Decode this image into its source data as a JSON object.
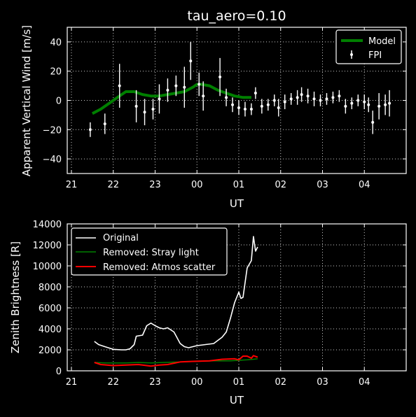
{
  "chart_data": [
    {
      "type": "line",
      "title": "tau_aero=0.10",
      "xlabel": "UT",
      "ylabel": "Apparent Vertical Wind [m/s]",
      "xlim": [
        20.9,
        29.0
      ],
      "ylim": [
        -50,
        50
      ],
      "xticks": [
        21,
        22,
        23,
        24,
        25,
        26,
        27,
        28
      ],
      "xtick_labels": [
        "21",
        "22",
        "23",
        "00",
        "01",
        "02",
        "03",
        "04"
      ],
      "yticks": [
        -40,
        -20,
        0,
        20,
        40
      ],
      "ytick_labels": [
        "−40",
        "−20",
        "0",
        "20",
        "40"
      ],
      "grid": true,
      "legend_position": "top-right",
      "legend": [
        "Model",
        "FPI"
      ],
      "colors": {
        "model": "#007f00",
        "fpi": "#ffffff",
        "background": "#000000",
        "grid": "#cccccc"
      },
      "series": [
        {
          "name": "Model",
          "style": "line",
          "x": [
            21.5,
            21.7,
            21.9,
            22.1,
            22.2,
            22.3,
            22.5,
            22.7,
            22.9,
            23.1,
            23.3,
            23.5,
            23.7,
            23.9,
            24.0,
            24.1,
            24.3,
            24.5,
            24.7,
            24.9,
            25.1,
            25.3
          ],
          "y": [
            -9,
            -6,
            -2,
            2,
            4,
            6,
            6,
            4,
            3,
            3,
            4,
            5,
            6,
            9,
            11,
            11,
            10,
            7,
            5,
            3,
            2,
            2
          ]
        },
        {
          "name": "FPI",
          "style": "errorbar",
          "points": [
            {
              "x": 21.45,
              "y": -20,
              "err": 5
            },
            {
              "x": 21.8,
              "y": -16,
              "err": 7
            },
            {
              "x": 22.15,
              "y": 10,
              "err": 15
            },
            {
              "x": 22.55,
              "y": -4,
              "err": 11
            },
            {
              "x": 22.75,
              "y": -8,
              "err": 9
            },
            {
              "x": 22.95,
              "y": -6,
              "err": 7
            },
            {
              "x": 23.1,
              "y": 1,
              "err": 10
            },
            {
              "x": 23.3,
              "y": 7,
              "err": 8
            },
            {
              "x": 23.5,
              "y": 10,
              "err": 7
            },
            {
              "x": 23.7,
              "y": 9,
              "err": 14
            },
            {
              "x": 23.85,
              "y": 27,
              "err": 13
            },
            {
              "x": 24.05,
              "y": 11,
              "err": 8
            },
            {
              "x": 24.15,
              "y": 3,
              "err": 10
            },
            {
              "x": 24.55,
              "y": 16,
              "err": 13
            },
            {
              "x": 24.7,
              "y": 2,
              "err": 6
            },
            {
              "x": 24.85,
              "y": -3,
              "err": 5
            },
            {
              "x": 25.0,
              "y": -5,
              "err": 5
            },
            {
              "x": 25.15,
              "y": -6,
              "err": 5
            },
            {
              "x": 25.3,
              "y": -6,
              "err": 4
            },
            {
              "x": 25.4,
              "y": 5,
              "err": 4
            },
            {
              "x": 25.55,
              "y": -4,
              "err": 5
            },
            {
              "x": 25.7,
              "y": -3,
              "err": 4
            },
            {
              "x": 25.85,
              "y": 0,
              "err": 4
            },
            {
              "x": 25.95,
              "y": -5,
              "err": 6
            },
            {
              "x": 26.1,
              "y": -1,
              "err": 5
            },
            {
              "x": 26.25,
              "y": 1,
              "err": 4
            },
            {
              "x": 26.4,
              "y": 2,
              "err": 5
            },
            {
              "x": 26.5,
              "y": 4,
              "err": 5
            },
            {
              "x": 26.65,
              "y": 3,
              "err": 5
            },
            {
              "x": 26.8,
              "y": 1,
              "err": 5
            },
            {
              "x": 26.95,
              "y": 0,
              "err": 4
            },
            {
              "x": 27.1,
              "y": 1,
              "err": 4
            },
            {
              "x": 27.25,
              "y": 2,
              "err": 4
            },
            {
              "x": 27.4,
              "y": 3,
              "err": 4
            },
            {
              "x": 27.55,
              "y": -4,
              "err": 5
            },
            {
              "x": 27.7,
              "y": -2,
              "err": 4
            },
            {
              "x": 27.85,
              "y": 0,
              "err": 4
            },
            {
              "x": 28.0,
              "y": -1,
              "err": 5
            },
            {
              "x": 28.1,
              "y": -3,
              "err": 5
            },
            {
              "x": 28.2,
              "y": -15,
              "err": 8
            },
            {
              "x": 28.35,
              "y": -4,
              "err": 9
            },
            {
              "x": 28.5,
              "y": -3,
              "err": 7
            },
            {
              "x": 28.6,
              "y": -2,
              "err": 9
            }
          ]
        }
      ]
    },
    {
      "type": "line",
      "title": "",
      "xlabel": "UT",
      "ylabel": "Zenith Brightness [R]",
      "xlim": [
        20.9,
        29.0
      ],
      "ylim": [
        0,
        14000
      ],
      "xticks": [
        21,
        22,
        23,
        24,
        25,
        26,
        27,
        28
      ],
      "xtick_labels": [
        "21",
        "22",
        "23",
        "00",
        "01",
        "02",
        "03",
        "04"
      ],
      "yticks": [
        0,
        2000,
        4000,
        6000,
        8000,
        10000,
        12000,
        14000
      ],
      "ytick_labels": [
        "0",
        "2000",
        "4000",
        "6000",
        "8000",
        "10000",
        "12000",
        "14000"
      ],
      "grid": true,
      "legend_position": "top-left",
      "legend": [
        "Original",
        "Removed: Stray light",
        "Removed: Atmos scatter"
      ],
      "colors": {
        "original": "#ffffff",
        "stray": "#008000",
        "atmos": "#ff0000"
      },
      "series": [
        {
          "name": "Original",
          "color": "#ffffff",
          "x": [
            21.55,
            21.65,
            21.8,
            22.0,
            22.2,
            22.3,
            22.4,
            22.5,
            22.55,
            22.7,
            22.8,
            22.9,
            23.0,
            23.1,
            23.2,
            23.3,
            23.45,
            23.6,
            23.7,
            23.8,
            23.9,
            24.0,
            24.2,
            24.4,
            24.6,
            24.7,
            24.8,
            24.9,
            25.0,
            25.05,
            25.1,
            25.2,
            25.3,
            25.35,
            25.4,
            25.45
          ],
          "y": [
            2800,
            2500,
            2300,
            2050,
            2000,
            2000,
            2100,
            2500,
            3300,
            3400,
            4300,
            4550,
            4300,
            4100,
            4000,
            4100,
            3700,
            2600,
            2300,
            2200,
            2300,
            2400,
            2500,
            2600,
            3200,
            3700,
            5000,
            6500,
            7500,
            6900,
            7000,
            9800,
            10500,
            12800,
            11400,
            11800
          ]
        },
        {
          "name": "Removed: Stray light",
          "color": "#008000",
          "x": [
            21.55,
            21.8,
            22.0,
            22.3,
            22.6,
            22.9,
            23.2,
            23.6,
            24.0,
            24.4,
            24.8,
            25.0,
            25.2,
            25.35,
            25.45
          ],
          "y": [
            800,
            750,
            750,
            750,
            800,
            750,
            800,
            850,
            900,
            950,
            950,
            1000,
            1050,
            1100,
            1150
          ]
        },
        {
          "name": "Removed: Atmos scatter",
          "color": "#ff0000",
          "x": [
            21.55,
            21.7,
            22.0,
            22.3,
            22.6,
            22.9,
            23.1,
            23.3,
            23.6,
            23.9,
            24.3,
            24.6,
            24.9,
            25.0,
            25.1,
            25.2,
            25.3,
            25.35,
            25.45
          ],
          "y": [
            800,
            600,
            500,
            550,
            600,
            450,
            550,
            600,
            850,
            900,
            950,
            1100,
            1150,
            1050,
            1400,
            1400,
            1200,
            1450,
            1300
          ]
        }
      ]
    }
  ]
}
